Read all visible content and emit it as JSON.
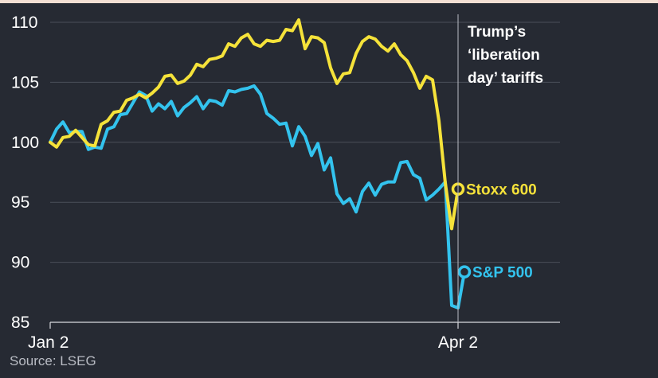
{
  "chart_data": {
    "type": "line",
    "title": "",
    "xlabel": "",
    "ylabel": "",
    "ylim": [
      85,
      110
    ],
    "yticks": [
      85,
      90,
      95,
      100,
      105,
      110
    ],
    "x_tick_labels": [
      "Jan 2",
      "Apr 2"
    ],
    "grid": "horizontal",
    "source": "Source: LSEG",
    "annotation": {
      "lines": [
        "Trump’s",
        "‘liberation",
        "day’ tariffs"
      ],
      "x": 64
    },
    "series": [
      {
        "name": "Stoxx 600",
        "color": "#f5e23a",
        "values": [
          100.0,
          99.6,
          100.4,
          100.5,
          101.0,
          100.4,
          99.8,
          99.7,
          101.5,
          101.8,
          102.5,
          102.6,
          103.5,
          103.7,
          104.0,
          103.7,
          104.1,
          104.6,
          105.5,
          105.6,
          104.9,
          105.1,
          105.6,
          106.5,
          106.3,
          106.9,
          107.0,
          107.2,
          108.2,
          108.0,
          108.7,
          109.0,
          108.2,
          108.0,
          108.5,
          108.4,
          108.5,
          109.4,
          109.3,
          110.2,
          107.8,
          108.8,
          108.7,
          108.3,
          106.2,
          104.9,
          105.7,
          105.8,
          107.4,
          108.4,
          108.8,
          108.6,
          108.0,
          107.6,
          108.2,
          107.3,
          106.8,
          105.8,
          104.5,
          105.5,
          105.2,
          101.8,
          96.6,
          92.8,
          96.1
        ],
        "end_label": "Stoxx 600"
      },
      {
        "name": "S&P 500",
        "color": "#33c3ee",
        "values": [
          100.0,
          101.1,
          101.7,
          100.8,
          100.9,
          100.9,
          99.4,
          99.6,
          99.5,
          101.1,
          101.3,
          102.3,
          102.4,
          103.3,
          104.2,
          103.9,
          102.6,
          103.2,
          102.8,
          103.4,
          102.2,
          102.9,
          103.3,
          103.8,
          102.8,
          103.5,
          103.4,
          103.1,
          104.3,
          104.2,
          104.4,
          104.5,
          104.7,
          104.0,
          102.4,
          102.0,
          101.5,
          101.6,
          99.7,
          101.3,
          100.5,
          98.9,
          99.9,
          97.7,
          98.7,
          95.7,
          94.9,
          95.3,
          94.2,
          95.9,
          96.6,
          95.6,
          96.5,
          96.7,
          96.7,
          98.3,
          98.4,
          97.3,
          97.0,
          95.2,
          95.6,
          96.1,
          96.7,
          86.4,
          86.2,
          89.2
        ],
        "end_label": "S&P 500"
      }
    ]
  }
}
